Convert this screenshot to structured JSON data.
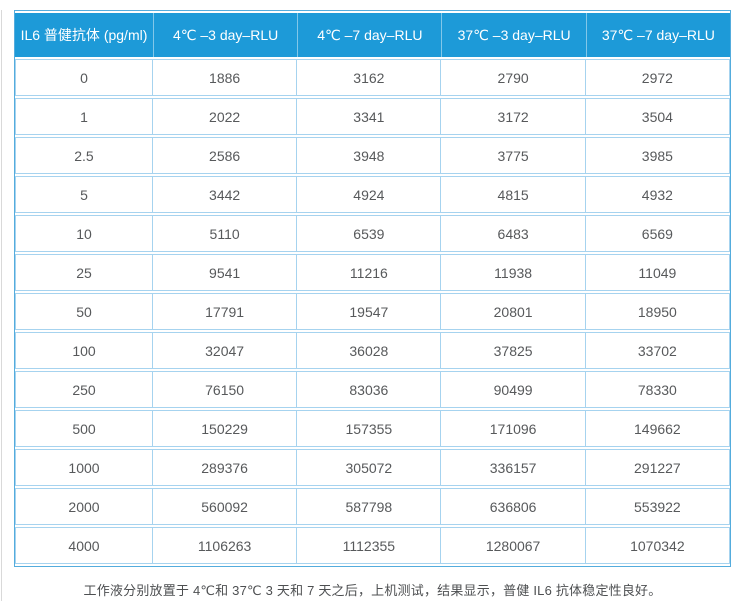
{
  "chart_data": {
    "type": "table",
    "columns": [
      "IL6 普健抗体 (pg/ml)",
      "4℃ –3 day–RLU",
      "4℃ –7 day–RLU",
      "37℃ –3 day–RLU",
      "37℃ –7 day–RLU"
    ],
    "rows": [
      [
        "0",
        "1886",
        "3162",
        "2790",
        "2972"
      ],
      [
        "1",
        "2022",
        "3341",
        "3172",
        "3504"
      ],
      [
        "2.5",
        "2586",
        "3948",
        "3775",
        "3985"
      ],
      [
        "5",
        "3442",
        "4924",
        "4815",
        "4932"
      ],
      [
        "10",
        "5110",
        "6539",
        "6483",
        "6569"
      ],
      [
        "25",
        "9541",
        "11216",
        "11938",
        "11049"
      ],
      [
        "50",
        "17791",
        "19547",
        "20801",
        "18950"
      ],
      [
        "100",
        "32047",
        "36028",
        "37825",
        "33702"
      ],
      [
        "250",
        "76150",
        "83036",
        "90499",
        "78330"
      ],
      [
        "500",
        "150229",
        "157355",
        "171096",
        "149662"
      ],
      [
        "1000",
        "289376",
        "305072",
        "336157",
        "291227"
      ],
      [
        "2000",
        "560092",
        "587798",
        "636806",
        "553922"
      ],
      [
        "4000",
        "1106263",
        "1112355",
        "1280067",
        "1070342"
      ]
    ]
  },
  "footer": {
    "note": "工作液分别放置于 4℃和 37℃ 3 天和 7 天之后，上机测试，结果显示，普健 IL6 抗体稳定性良好。"
  },
  "colors": {
    "header_bg": "#1d9ad8",
    "header_text": "#ffffff",
    "cell_border": "#a6d3ef",
    "outer_border": "#54acdd",
    "cell_text": "#57595b"
  }
}
